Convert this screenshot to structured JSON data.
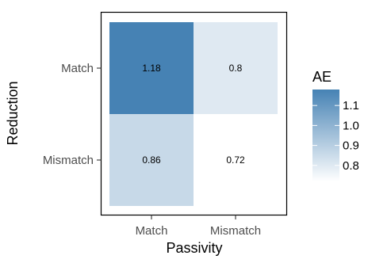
{
  "chart_data": {
    "type": "heatmap",
    "x_categories": [
      "Match",
      "Mismatch"
    ],
    "y_categories": [
      "Match",
      "Mismatch"
    ],
    "values": [
      [
        1.18,
        0.8
      ],
      [
        0.86,
        0.72
      ]
    ],
    "value_labels": [
      [
        "1.18",
        "0.8"
      ],
      [
        "0.86",
        "0.72"
      ]
    ],
    "xlabel": "Passivity",
    "ylabel": "Reduction",
    "legend": {
      "title": "AE",
      "ticks": [
        1.1,
        1.0,
        0.9,
        0.8
      ],
      "tick_labels": [
        "1.1",
        "1.0",
        "0.9",
        "0.8"
      ],
      "range": [
        0.72,
        1.18
      ],
      "placement": "right"
    },
    "colors": {
      "high": "#4682B4",
      "low": "#FFFFFF"
    },
    "grid": false
  }
}
